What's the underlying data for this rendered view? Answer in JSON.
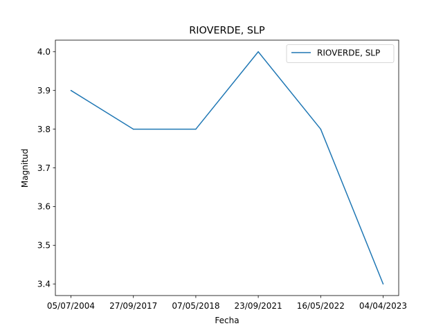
{
  "chart_data": {
    "type": "line",
    "title": "RIOVERDE, SLP",
    "xlabel": "Fecha",
    "ylabel": "Magnitud",
    "categories": [
      "05/07/2004",
      "27/09/2017",
      "07/05/2018",
      "23/09/2021",
      "16/05/2022",
      "04/04/2023"
    ],
    "series": [
      {
        "name": "RIOVERDE, SLP",
        "values": [
          3.9,
          3.8,
          3.8,
          4.0,
          3.8,
          3.4
        ],
        "color": "#1f77b4"
      }
    ],
    "ylim": [
      3.37,
      4.03
    ],
    "yticks": [
      "3.4",
      "3.5",
      "3.6",
      "3.7",
      "3.8",
      "3.9",
      "4.0"
    ],
    "grid": false,
    "legend_position": "top-right"
  }
}
